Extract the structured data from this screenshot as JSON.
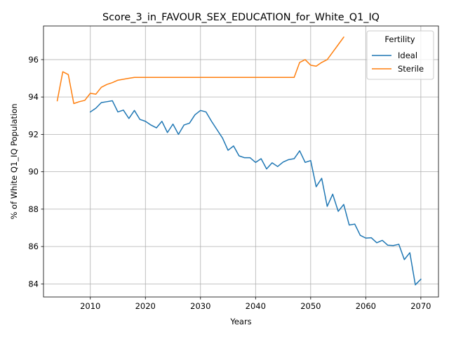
{
  "chart_data": {
    "type": "line",
    "title": "Score_3_in_FAVOUR_SEX_EDUCATION_for_White_Q1_IQ",
    "xlabel": "Years",
    "ylabel": "% of White Q1_IQ Population",
    "xlim": [
      2001.5,
      2073.2
    ],
    "ylim": [
      83.3,
      97.8
    ],
    "xticks": [
      2010,
      2020,
      2030,
      2040,
      2050,
      2060,
      2070
    ],
    "yticks": [
      84,
      86,
      88,
      90,
      92,
      94,
      96
    ],
    "grid": true,
    "legend": {
      "title": "Fertility",
      "placement": "top-right"
    },
    "series": [
      {
        "name": "Ideal",
        "color": "#1f77b4",
        "x": [
          2010,
          2011,
          2012,
          2013,
          2014,
          2015,
          2016,
          2017,
          2018,
          2019,
          2020,
          2021,
          2022,
          2023,
          2024,
          2025,
          2026,
          2027,
          2028,
          2029,
          2030,
          2031,
          2032,
          2033,
          2034,
          2035,
          2036,
          2037,
          2038,
          2039,
          2040,
          2041,
          2042,
          2043,
          2044,
          2045,
          2046,
          2047,
          2048,
          2049,
          2050,
          2051,
          2052,
          2053,
          2054,
          2055,
          2056,
          2057,
          2058,
          2059,
          2060,
          2061,
          2062,
          2063,
          2064,
          2065,
          2066,
          2067,
          2068,
          2069,
          2070
        ],
        "values": [
          93.2,
          93.4,
          93.7,
          93.75,
          93.8,
          93.2,
          93.3,
          92.85,
          93.28,
          92.8,
          92.7,
          92.5,
          92.35,
          92.7,
          92.1,
          92.55,
          92.0,
          92.5,
          92.6,
          93.05,
          93.28,
          93.2,
          92.7,
          92.25,
          91.8,
          91.15,
          91.38,
          90.85,
          90.75,
          90.75,
          90.5,
          90.7,
          90.15,
          90.48,
          90.28,
          90.52,
          90.65,
          90.7,
          91.12,
          90.5,
          90.6,
          89.2,
          89.65,
          88.15,
          88.8,
          87.88,
          88.25,
          87.15,
          87.2,
          86.6,
          86.45,
          86.47,
          86.2,
          86.33,
          86.07,
          86.05,
          86.12,
          85.3,
          85.67,
          83.95,
          84.25
        ]
      },
      {
        "name": "Sterile",
        "color": "#ff7f0e",
        "x": [
          2004,
          2005,
          2006,
          2007,
          2008,
          2009,
          2010,
          2011,
          2012,
          2013,
          2014,
          2015,
          2016,
          2017,
          2018,
          2019,
          2020,
          2021,
          2022,
          2023,
          2024,
          2025,
          2026,
          2027,
          2028,
          2029,
          2030,
          2031,
          2032,
          2033,
          2034,
          2035,
          2036,
          2037,
          2038,
          2039,
          2040,
          2041,
          2042,
          2043,
          2044,
          2045,
          2046,
          2047,
          2048,
          2049,
          2050,
          2051,
          2052,
          2053,
          2054,
          2055,
          2056
        ],
        "values": [
          93.8,
          95.35,
          95.2,
          93.65,
          93.75,
          93.82,
          94.2,
          94.15,
          94.52,
          94.67,
          94.77,
          94.9,
          94.95,
          95.0,
          95.05,
          95.05,
          95.05,
          95.05,
          95.05,
          95.05,
          95.05,
          95.05,
          95.05,
          95.05,
          95.05,
          95.05,
          95.05,
          95.05,
          95.05,
          95.05,
          95.05,
          95.05,
          95.05,
          95.05,
          95.05,
          95.05,
          95.05,
          95.05,
          95.05,
          95.05,
          95.05,
          95.05,
          95.05,
          95.05,
          95.85,
          96.0,
          95.7,
          95.65,
          95.85,
          96.0,
          96.4,
          96.8,
          97.2
        ]
      }
    ]
  }
}
